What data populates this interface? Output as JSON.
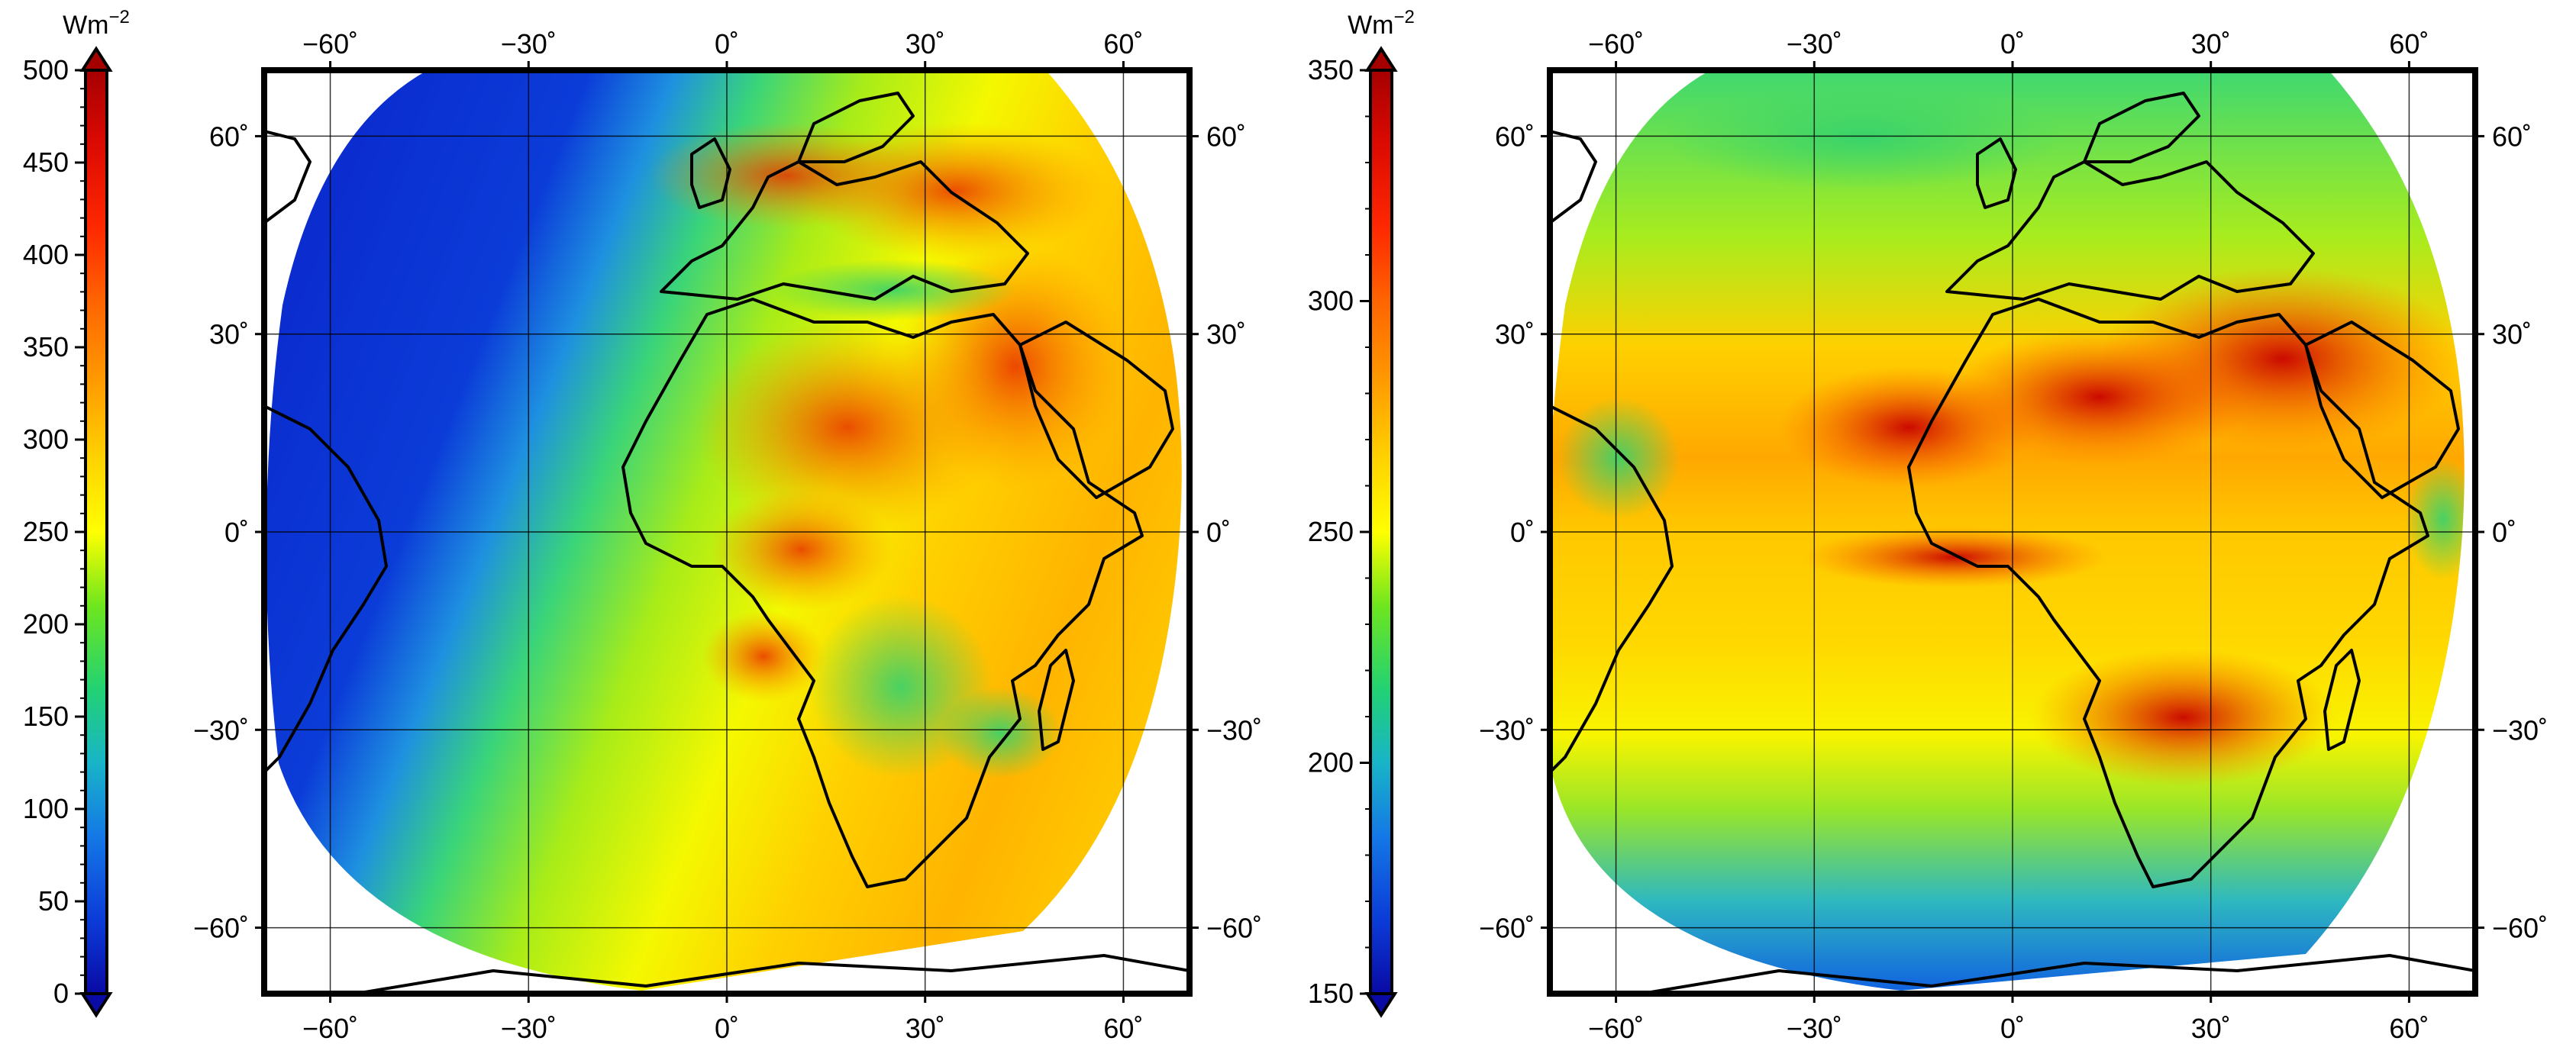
{
  "panels": [
    {
      "id": "left",
      "colorbar": {
        "unit": "Wm",
        "unit_superscript": "−2",
        "ticks": [
          "0",
          "50",
          "100",
          "150",
          "200",
          "250",
          "300",
          "350",
          "400",
          "450",
          "500"
        ]
      },
      "lon_ticks": [
        "−60˚",
        "−30˚",
        "0˚",
        "30˚",
        "60˚"
      ],
      "lat_ticks": [
        "60˚",
        "30˚",
        "0˚",
        "−30˚",
        "−60˚"
      ],
      "field": "shortwave"
    },
    {
      "id": "right",
      "colorbar": {
        "unit": "Wm",
        "unit_superscript": "−2",
        "ticks": [
          "150",
          "200",
          "250",
          "300",
          "350"
        ]
      },
      "lon_ticks": [
        "−60˚",
        "−30˚",
        "0˚",
        "30˚",
        "60˚"
      ],
      "lat_ticks": [
        "60˚",
        "30˚",
        "0˚",
        "−30˚",
        "−60˚"
      ],
      "field": "longwave"
    }
  ],
  "colormap": [
    "#0a0aa5",
    "#0b3cd8",
    "#1478e6",
    "#18b4c8",
    "#22d272",
    "#6ee61e",
    "#c8f000",
    "#ffff00",
    "#ffc800",
    "#ff8c00",
    "#ff4600",
    "#e60a00",
    "#a50000"
  ],
  "colors": {
    "frame": "#000000",
    "grid": "#000000",
    "coast": "#000000",
    "land_outside": "#ffffff"
  }
}
